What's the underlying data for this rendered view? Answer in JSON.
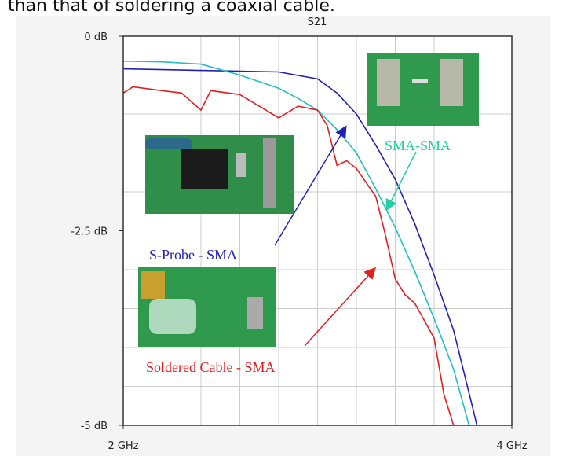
{
  "caption": "than that of soldering a coaxial cable.",
  "chart_data": {
    "type": "line",
    "title": "S21",
    "xlim": [
      2,
      4
    ],
    "xticks": [
      {
        "value": 2,
        "label": "2 GHz"
      },
      {
        "value": 4,
        "label": "4 GHz"
      }
    ],
    "x_minor_ticks": [
      2.2,
      2.4,
      2.6,
      2.8,
      3.0,
      3.2,
      3.4,
      3.6,
      3.8
    ],
    "ylim": [
      -5,
      0
    ],
    "yticks": [
      {
        "value": 0,
        "label": "0 dB"
      },
      {
        "value": -2.5,
        "label": "-2.5 dB"
      },
      {
        "value": -5,
        "label": "-5 dB"
      }
    ],
    "y_minor_ticks": [
      -0.5,
      -1,
      -1.5,
      -2,
      -3,
      -3.5,
      -4,
      -4.5
    ],
    "grid": true,
    "series": [
      {
        "name": "S-Probe - SMA",
        "color": "#2222b0",
        "x": [
          2.0,
          2.2,
          2.4,
          2.6,
          2.8,
          3.0,
          3.1,
          3.2,
          3.3,
          3.4,
          3.5,
          3.6,
          3.7,
          3.8,
          3.82
        ],
        "values": [
          -0.42,
          -0.43,
          -0.44,
          -0.45,
          -0.46,
          -0.55,
          -0.73,
          -1.0,
          -1.4,
          -1.84,
          -2.41,
          -3.07,
          -3.78,
          -4.79,
          -5.0
        ]
      },
      {
        "name": "SMA-SMA",
        "color": "#22c0c0",
        "x": [
          2.0,
          2.2,
          2.4,
          2.6,
          2.8,
          2.9,
          3.0,
          3.1,
          3.2,
          3.3,
          3.4,
          3.5,
          3.6,
          3.7,
          3.78
        ],
        "values": [
          -0.32,
          -0.33,
          -0.36,
          -0.5,
          -0.67,
          -0.8,
          -0.95,
          -1.2,
          -1.5,
          -1.96,
          -2.46,
          -3.02,
          -3.63,
          -4.28,
          -5.0
        ]
      },
      {
        "name": "Soldered Cable - SMA",
        "color": "#dd2020",
        "x": [
          2.0,
          2.05,
          2.2,
          2.3,
          2.4,
          2.45,
          2.6,
          2.7,
          2.8,
          2.9,
          3.0,
          3.05,
          3.1,
          3.15,
          3.2,
          3.3,
          3.35,
          3.4,
          3.45,
          3.5,
          3.6,
          3.65,
          3.7
        ],
        "values": [
          -0.73,
          -0.65,
          -0.7,
          -0.73,
          -0.95,
          -0.7,
          -0.75,
          -0.9,
          -1.05,
          -0.9,
          -0.95,
          -1.15,
          -1.66,
          -1.6,
          -1.7,
          -2.06,
          -2.56,
          -3.12,
          -3.32,
          -3.43,
          -3.88,
          -4.6,
          -5.0
        ]
      }
    ]
  }
}
